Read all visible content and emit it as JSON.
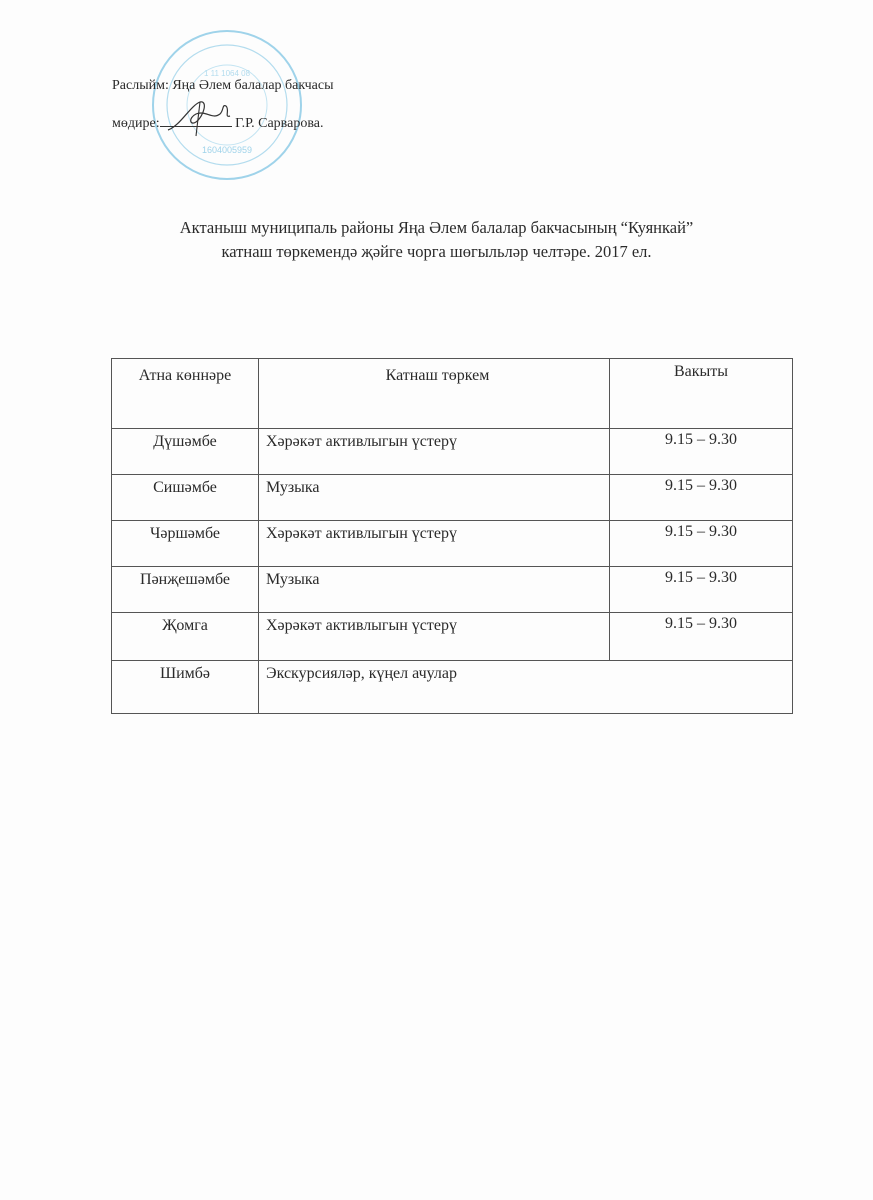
{
  "approval": {
    "line1": "Раслыйм: Яңа Әлем балалар бакчасы",
    "line2_label": "мөдире:",
    "line2_name": "Г.Р. Сарварова."
  },
  "stamp": {
    "lettering": "ИНН 1604005959",
    "color": "#7cc4e0"
  },
  "title": {
    "line1": "Актаныш муниципаль районы Яңа Әлем балалар бакчасының “Куянкай”",
    "line2": "катнаш төркемендә җәйге чорга шөгыльләр челтәре. 2017 ел."
  },
  "table": {
    "headers": [
      "Атна көннәре",
      "Катнаш төркем",
      "Вакыты"
    ],
    "rows": [
      [
        "Дүшәмбе",
        "Хәрәкәт активлыгын үстерү",
        "9.15 – 9.30"
      ],
      [
        "Сишәмбе",
        "Музыка",
        "9.15 – 9.30"
      ],
      [
        "Чәршәмбе",
        "Хәрәкәт активлыгын үстерү",
        "9.15 – 9.30"
      ],
      [
        "Пәнҗешәмбе",
        "Музыка",
        "9.15 – 9.30"
      ],
      [
        "Җомга",
        "Хәрәкәт активлыгын үстерү",
        "9.15 – 9.30"
      ],
      [
        "Шимбә",
        "Экскурсияләр, күңел ачулар"
      ]
    ]
  }
}
